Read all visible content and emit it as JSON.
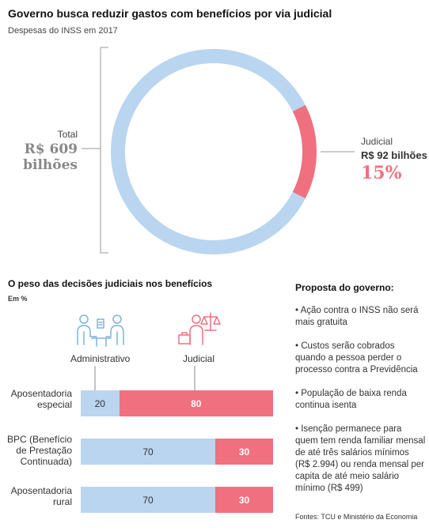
{
  "header": {
    "title": "Governo busca reduzir gastos com benefícios por via judicial",
    "subtitle": "Despesas do INSS em 2017"
  },
  "donut": {
    "total_label": "Total",
    "total_value": "R$ 609 bilhões",
    "judicial_label": "Judicial",
    "judicial_value": "R$ 92 bilhões",
    "judicial_pct": "15%",
    "judicial_fraction": 0.15,
    "colors": {
      "rest": "#bad5ef",
      "judicial": "#f0707f"
    }
  },
  "chart_data": {
    "type": "bar",
    "orientation": "horizontal",
    "stacked": true,
    "title": "O peso das decisões judiciais nos benefícios",
    "unit": "Em %",
    "categories": [
      "Aposentadoria especial",
      "BPC (Benefício de Prestação Continuada)",
      "Aposentadoria rural"
    ],
    "series": [
      {
        "name": "Administrativo",
        "values": [
          20,
          70,
          70
        ],
        "color": "#bad5ef"
      },
      {
        "name": "Judicial",
        "values": [
          80,
          30,
          30
        ],
        "color": "#f0707f"
      }
    ],
    "xlim": [
      0,
      100
    ]
  },
  "icons": {
    "administrativo": "two-people-desk-icon",
    "judicial": "judge-scales-icon"
  },
  "proposal": {
    "title": "Proposta do governo:",
    "items": [
      "• Ação contra o INSS não será mais gratuita",
      "• Custos serão cobrados quando a pessoa perder o processo contra a Previdência",
      "• População de baixa renda continua isenta",
      "• Isenção permanece para quem tem renda familiar mensal de até três salários mínimos (R$ 2.994) ou renda mensal per capita de até meio salário mínimo (R$ 499)"
    ]
  },
  "source": "Fontes: TCU e Ministério da Economia"
}
